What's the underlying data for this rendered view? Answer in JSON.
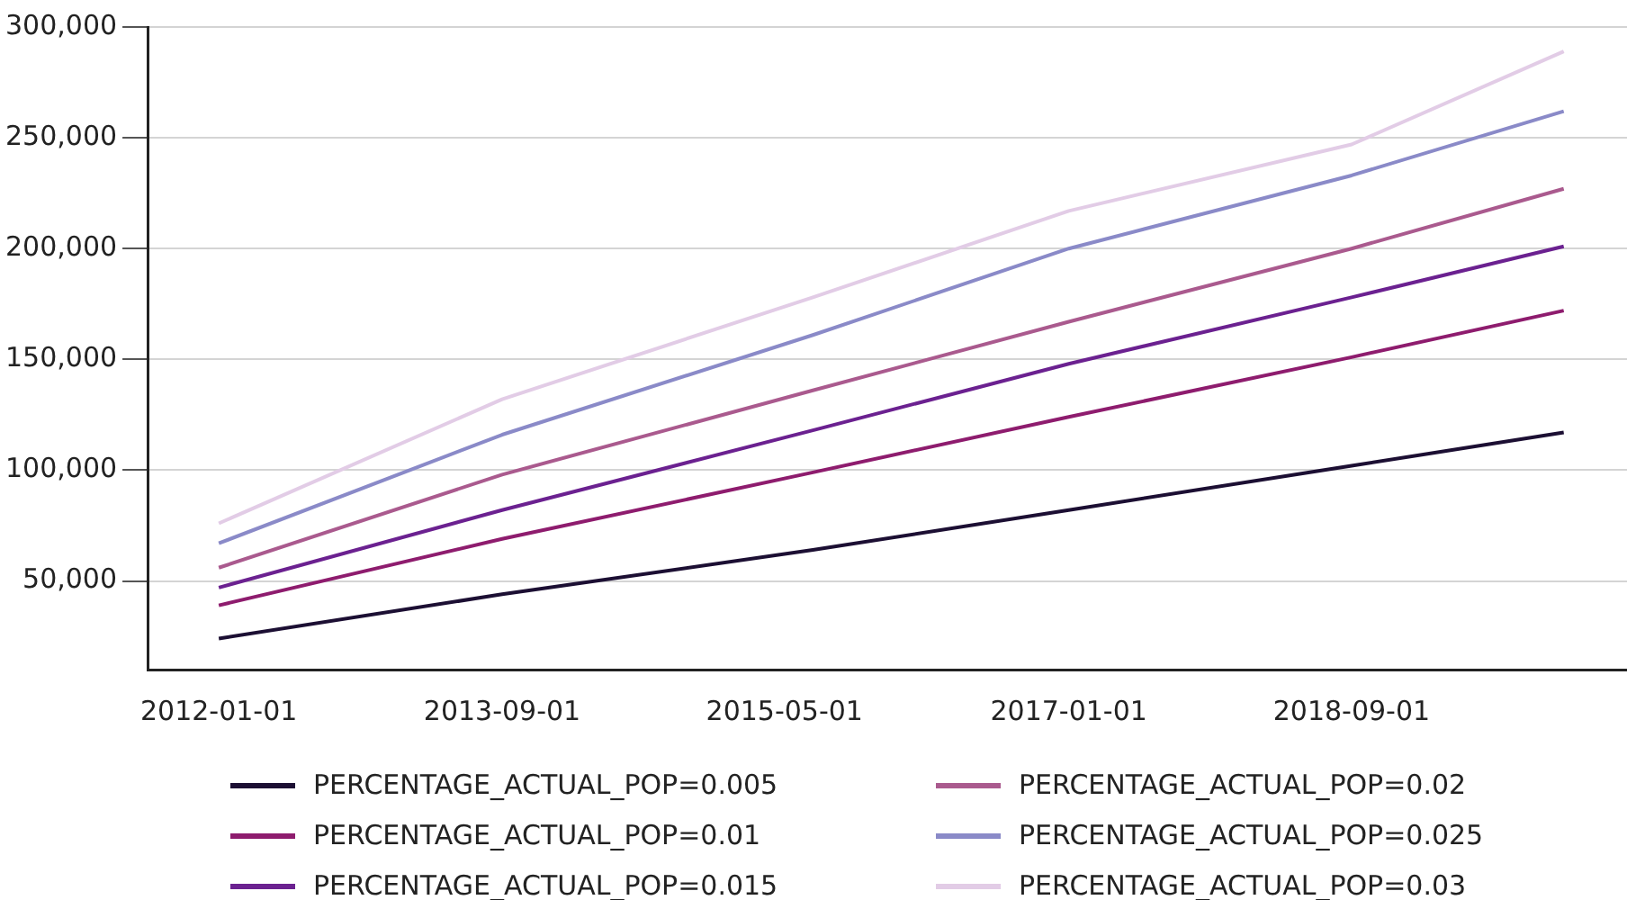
{
  "chart_data": {
    "type": "line",
    "x": [
      "2012-01-01",
      "2013-09-01",
      "2015-07-01",
      "2017-01-01",
      "2018-09-01",
      "2019-12-01"
    ],
    "series": [
      {
        "name": "PERCENTAGE_ACTUAL_POP=0.005",
        "color": "#1c0f33",
        "values": [
          24000,
          44000,
          64000,
          82000,
          102000,
          117000
        ]
      },
      {
        "name": "PERCENTAGE_ACTUAL_POP=0.01",
        "color": "#8e1c6e",
        "values": [
          39000,
          69000,
          99000,
          124000,
          151000,
          172000
        ]
      },
      {
        "name": "PERCENTAGE_ACTUAL_POP=0.015",
        "color": "#6b2190",
        "values": [
          47000,
          82000,
          118000,
          148000,
          178000,
          201000
        ]
      },
      {
        "name": "PERCENTAGE_ACTUAL_POP=0.02",
        "color": "#aa5a8e",
        "values": [
          56000,
          98000,
          136000,
          167000,
          200000,
          227000
        ]
      },
      {
        "name": "PERCENTAGE_ACTUAL_POP=0.025",
        "color": "#8a8ac8",
        "values": [
          67000,
          116000,
          161000,
          200000,
          233000,
          262000
        ]
      },
      {
        "name": "PERCENTAGE_ACTUAL_POP=0.03",
        "color": "#e2cce6",
        "values": [
          76000,
          132000,
          178000,
          217000,
          247000,
          289000
        ]
      }
    ],
    "xlim": [
      "2011-08-01",
      "2020-04-15"
    ],
    "xticks": [
      "2012-01-01",
      "2013-09-01",
      "2015-05-01",
      "2017-01-01",
      "2018-09-01"
    ],
    "ylim": [
      10000,
      300000
    ],
    "yticks": [
      {
        "value": 50000,
        "label": "50,000"
      },
      {
        "value": 100000,
        "label": "100,000"
      },
      {
        "value": 150000,
        "label": "150,000"
      },
      {
        "value": 200000,
        "label": "200,000"
      },
      {
        "value": 250000,
        "label": "250,000"
      },
      {
        "value": 300000,
        "label": "300,000"
      }
    ],
    "grid": "y",
    "legend": "bottom",
    "marker": "none",
    "line_style": "solid"
  }
}
